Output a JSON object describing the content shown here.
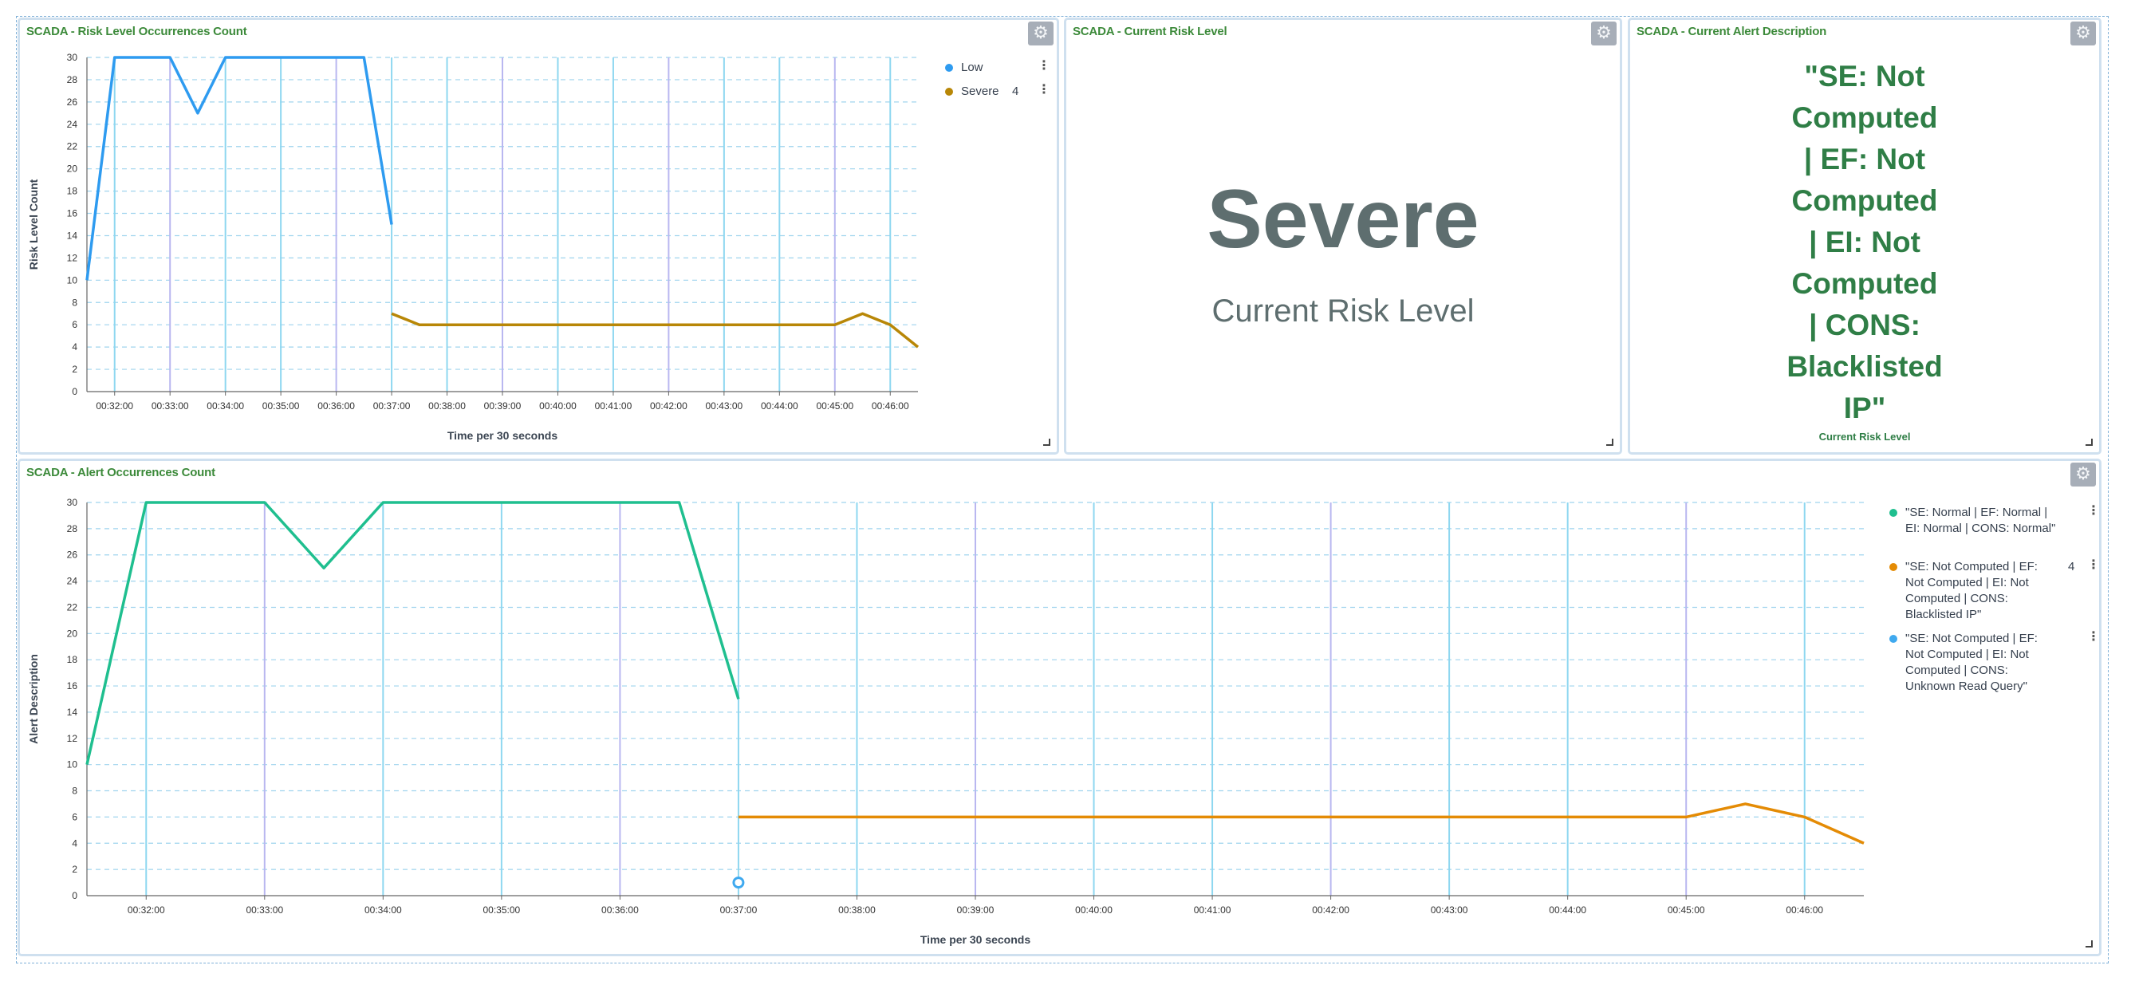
{
  "colors": {
    "low": "#2e9bf0",
    "severe": "#b88707",
    "normal": "#1fbf8f",
    "not_computed_blacklisted": "#e48b05",
    "not_computed_unknown": "#3fa9ef",
    "title_green": "#3c8a3a",
    "metric_gray": "#5e6e6f"
  },
  "icons": {
    "panel_settings": "gear-icon",
    "legend_options": "vertical-dots-icon",
    "resize_handle": "corner-resize-icon"
  },
  "panels": {
    "risk_count": {
      "title": "SCADA - Risk Level Occurrences Count"
    },
    "current_risk": {
      "title": "SCADA - Current Risk Level",
      "value": "Severe",
      "label": "Current Risk Level"
    },
    "alert_description": {
      "title": "SCADA - Current Alert Description",
      "lines": [
        "\"SE: Not",
        "Computed",
        "| EF: Not",
        "Computed",
        "| EI: Not",
        "Computed",
        "| CONS:",
        "Blacklisted",
        "IP\""
      ],
      "label": "Current Risk Level"
    },
    "alert_count": {
      "title": "SCADA - Alert Occurrences Count"
    }
  },
  "chart_data": [
    {
      "type": "line",
      "title": "SCADA - Risk Level Occurrences Count",
      "xlabel": "Time per 30 seconds",
      "ylabel": "Risk Level Count",
      "x_ticks": [
        "00:32:00",
        "00:33:00",
        "00:34:00",
        "00:35:00",
        "00:36:00",
        "00:37:00",
        "00:38:00",
        "00:39:00",
        "00:40:00",
        "00:41:00",
        "00:42:00",
        "00:43:00",
        "00:44:00",
        "00:45:00",
        "00:46:00"
      ],
      "ylim": [
        0,
        30
      ],
      "y_ticks": [
        0,
        2,
        4,
        6,
        8,
        10,
        12,
        14,
        16,
        18,
        20,
        22,
        24,
        26,
        28,
        30
      ],
      "grid": true,
      "legend_position": "right",
      "series": [
        {
          "name": "Low",
          "legend_value": "",
          "color": "#2e9bf0",
          "points": [
            [
              "00:31:30",
              10
            ],
            [
              "00:32:00",
              30
            ],
            [
              "00:32:30",
              30
            ],
            [
              "00:33:00",
              30
            ],
            [
              "00:33:30",
              25
            ],
            [
              "00:34:00",
              30
            ],
            [
              "00:34:30",
              30
            ],
            [
              "00:35:00",
              30
            ],
            [
              "00:35:30",
              30
            ],
            [
              "00:36:00",
              30
            ],
            [
              "00:36:30",
              30
            ],
            [
              "00:37:00",
              15
            ]
          ]
        },
        {
          "name": "Severe",
          "legend_value": "4",
          "color": "#b88707",
          "points": [
            [
              "00:37:00",
              7
            ],
            [
              "00:37:30",
              6
            ],
            [
              "00:38:00",
              6
            ],
            [
              "00:39:00",
              6
            ],
            [
              "00:40:00",
              6
            ],
            [
              "00:41:00",
              6
            ],
            [
              "00:42:00",
              6
            ],
            [
              "00:43:00",
              6
            ],
            [
              "00:44:00",
              6
            ],
            [
              "00:45:00",
              6
            ],
            [
              "00:45:30",
              7
            ],
            [
              "00:46:00",
              6
            ],
            [
              "00:46:30",
              4
            ]
          ]
        }
      ]
    },
    {
      "type": "line",
      "title": "SCADA - Alert Occurrences Count",
      "xlabel": "Time per 30 seconds",
      "ylabel": "Alert Description",
      "x_ticks": [
        "00:32:00",
        "00:33:00",
        "00:34:00",
        "00:35:00",
        "00:36:00",
        "00:37:00",
        "00:38:00",
        "00:39:00",
        "00:40:00",
        "00:41:00",
        "00:42:00",
        "00:43:00",
        "00:44:00",
        "00:45:00",
        "00:46:00"
      ],
      "ylim": [
        0,
        30
      ],
      "y_ticks": [
        0,
        2,
        4,
        6,
        8,
        10,
        12,
        14,
        16,
        18,
        20,
        22,
        24,
        26,
        28,
        30
      ],
      "grid": true,
      "legend_position": "right",
      "series": [
        {
          "name": "\"SE: Normal | EF: Normal | EI: Normal | CONS: Normal\"",
          "legend_value": "",
          "color": "#1fbf8f",
          "points": [
            [
              "00:31:30",
              10
            ],
            [
              "00:32:00",
              30
            ],
            [
              "00:32:30",
              30
            ],
            [
              "00:33:00",
              30
            ],
            [
              "00:33:30",
              25
            ],
            [
              "00:34:00",
              30
            ],
            [
              "00:34:30",
              30
            ],
            [
              "00:35:00",
              30
            ],
            [
              "00:35:30",
              30
            ],
            [
              "00:36:00",
              30
            ],
            [
              "00:36:30",
              30
            ],
            [
              "00:37:00",
              15
            ]
          ]
        },
        {
          "name": "\"SE: Not Computed | EF: Not Computed | EI: Not Computed | CONS: Blacklisted IP\"",
          "legend_value": "4",
          "color": "#e48b05",
          "points": [
            [
              "00:37:00",
              6
            ],
            [
              "00:38:00",
              6
            ],
            [
              "00:39:00",
              6
            ],
            [
              "00:40:00",
              6
            ],
            [
              "00:41:00",
              6
            ],
            [
              "00:42:00",
              6
            ],
            [
              "00:43:00",
              6
            ],
            [
              "00:44:00",
              6
            ],
            [
              "00:45:00",
              6
            ],
            [
              "00:45:30",
              7
            ],
            [
              "00:46:00",
              6
            ],
            [
              "00:46:30",
              4
            ]
          ]
        },
        {
          "name": "\"SE: Not Computed | EF: Not Computed | EI: Not Computed | CONS: Unknown Read Query\"",
          "legend_value": "",
          "color": "#3fa9ef",
          "points": [
            [
              "00:37:00",
              1
            ]
          ]
        }
      ]
    }
  ]
}
